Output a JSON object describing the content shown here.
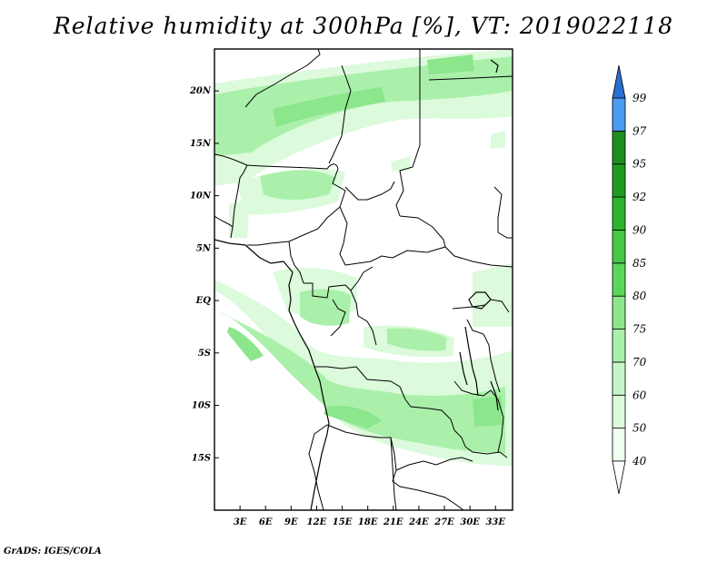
{
  "title": "Relative humidity at 300hPa [%], VT: 2019022118",
  "footer": "GrADS: IGES/COLA",
  "map": {
    "variable": "Relative humidity",
    "level": "300hPa",
    "units": "%",
    "valid_time": "2019022118",
    "lon_range": [
      0,
      35
    ],
    "lat_range": [
      -20,
      24
    ],
    "lat_ticks": [
      {
        "value": 20,
        "label": "20N"
      },
      {
        "value": 15,
        "label": "15N"
      },
      {
        "value": 10,
        "label": "10N"
      },
      {
        "value": 5,
        "label": "5N"
      },
      {
        "value": 0,
        "label": "EQ"
      },
      {
        "value": -5,
        "label": "5S"
      },
      {
        "value": -10,
        "label": "10S"
      },
      {
        "value": -15,
        "label": "15S"
      }
    ],
    "lon_ticks": [
      {
        "value": 3,
        "label": "3E"
      },
      {
        "value": 6,
        "label": "6E"
      },
      {
        "value": 9,
        "label": "9E"
      },
      {
        "value": 12,
        "label": "12E"
      },
      {
        "value": 15,
        "label": "15E"
      },
      {
        "value": 18,
        "label": "18E"
      },
      {
        "value": 21,
        "label": "21E"
      },
      {
        "value": 24,
        "label": "24E"
      },
      {
        "value": 27,
        "label": "27E"
      },
      {
        "value": 30,
        "label": "30E"
      },
      {
        "value": 33,
        "label": "33E"
      }
    ]
  },
  "colorbar": {
    "levels": [
      {
        "label": "40",
        "color": "#f0fff0"
      },
      {
        "label": "50",
        "color": "#dcfadc"
      },
      {
        "label": "60",
        "color": "#c8f5c8"
      },
      {
        "label": "70",
        "color": "#aaf0aa"
      },
      {
        "label": "75",
        "color": "#8ce68c"
      },
      {
        "label": "80",
        "color": "#5ad75a"
      },
      {
        "label": "85",
        "color": "#46c846"
      },
      {
        "label": "90",
        "color": "#2db42d"
      },
      {
        "label": "92",
        "color": "#1e9b1e"
      },
      {
        "label": "95",
        "color": "#1e8c1e"
      },
      {
        "label": "97",
        "color": "#4a9bef"
      },
      {
        "label": "99",
        "color": "#2a6ed2"
      }
    ],
    "bottom_color": "#ffffff",
    "top_color": "#2a6ed2"
  }
}
